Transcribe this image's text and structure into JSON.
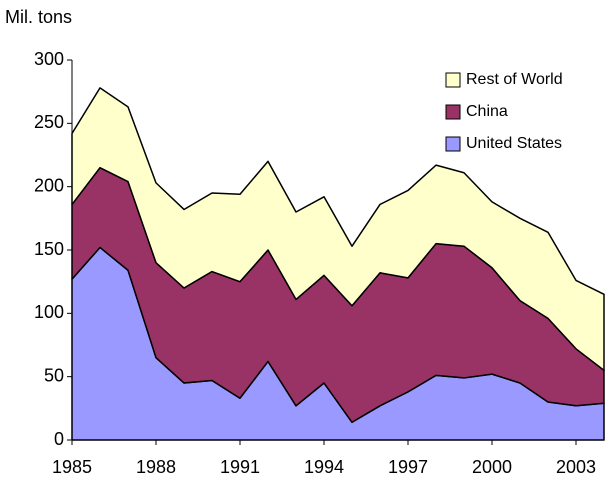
{
  "chart_data": {
    "type": "stacked-area",
    "y_label": "Mil. tons",
    "x": [
      1985,
      1986,
      1987,
      1988,
      1989,
      1990,
      1991,
      1992,
      1993,
      1994,
      1995,
      1996,
      1997,
      1998,
      1999,
      2000,
      2001,
      2002,
      2003,
      2004
    ],
    "series": [
      {
        "name": "United States",
        "color": "#9999ff",
        "values": [
          127,
          152,
          134,
          65,
          45,
          47,
          33,
          62,
          27,
          45,
          14,
          27,
          38,
          51,
          49,
          52,
          45,
          30,
          27,
          29
        ]
      },
      {
        "name": "China",
        "color": "#993366",
        "values": [
          59,
          63,
          70,
          75,
          75,
          86,
          92,
          88,
          84,
          85,
          92,
          105,
          90,
          104,
          104,
          84,
          65,
          66,
          45,
          26
        ]
      },
      {
        "name": "Rest of World",
        "color": "#ffffcc",
        "values": [
          56,
          63,
          59,
          63,
          62,
          62,
          69,
          70,
          69,
          62,
          47,
          54,
          69,
          62,
          58,
          52,
          65,
          68,
          54,
          60
        ]
      }
    ],
    "xlim": [
      1985,
      2004
    ],
    "xticks": [
      1985,
      1988,
      1991,
      1994,
      1997,
      2000,
      2003
    ],
    "ylim": [
      0,
      300
    ],
    "yticks": [
      0,
      50,
      100,
      150,
      200,
      250,
      300
    ],
    "grid": false,
    "legend": "top-right"
  }
}
